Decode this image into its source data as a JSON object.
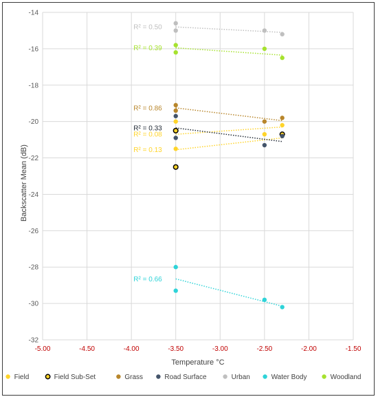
{
  "chart_data": {
    "type": "scatter",
    "title": "",
    "xlabel": "Temperature °C",
    "ylabel": "Backscatter Mean (dB)",
    "xlim": [
      -5.0,
      -1.5
    ],
    "ylim": [
      -32,
      -14
    ],
    "x_ticks": [
      -5.0,
      -4.5,
      -4.0,
      -3.5,
      -3.0,
      -2.5,
      -2.0,
      -1.5
    ],
    "x_tick_labels": [
      "-5.00",
      "-4.50",
      "-4.00",
      "-3.50",
      "-3.00",
      "-2.50",
      "-2.00",
      "-1.50"
    ],
    "y_ticks": [
      -14,
      -16,
      -18,
      -20,
      -22,
      -24,
      -26,
      -28,
      -30,
      -32
    ],
    "y_tick_labels": [
      "-14",
      "-16",
      "-18",
      "-20",
      "-22",
      "-24",
      "-26",
      "-28",
      "-30",
      "-32"
    ],
    "grid": true,
    "legend_position": "bottom",
    "series": [
      {
        "name": "Field",
        "color": "#ffd42a",
        "marker": "filled",
        "points": [
          [
            -3.5,
            -21.5
          ],
          [
            -3.5,
            -20.0
          ],
          [
            -2.5,
            -20.7
          ],
          [
            -2.3,
            -20.2
          ]
        ],
        "trendlines": [
          {
            "x": [
              -3.5,
              -2.3
            ],
            "y": [
              -20.7,
              -20.3
            ],
            "r2_label": "R² = 0.08"
          },
          {
            "x": [
              -3.5,
              -2.3
            ],
            "y": [
              -21.55,
              -20.9
            ],
            "r2_label": "R² = 0.13"
          }
        ]
      },
      {
        "name": "Field Sub-Set",
        "color": "#ffd42a",
        "edge": "#000000",
        "marker": "hollow",
        "points": [
          [
            -3.5,
            -20.5
          ],
          [
            -3.5,
            -22.5
          ],
          [
            -2.3,
            -20.7
          ]
        ],
        "trendlines": []
      },
      {
        "name": "Grass",
        "color": "#b8862b",
        "marker": "filled",
        "points": [
          [
            -3.5,
            -19.1
          ],
          [
            -3.5,
            -19.4
          ],
          [
            -2.5,
            -20.0
          ],
          [
            -2.3,
            -19.8
          ]
        ],
        "trendlines": [
          {
            "x": [
              -3.5,
              -2.3
            ],
            "y": [
              -19.25,
              -19.95
            ],
            "r2_label": "R² = 0.86"
          }
        ]
      },
      {
        "name": "Road Surface",
        "color": "#44546a",
        "marker": "filled",
        "points": [
          [
            -3.5,
            -19.7
          ],
          [
            -3.5,
            -20.9
          ],
          [
            -2.5,
            -21.3
          ],
          [
            -2.3,
            -20.8
          ]
        ],
        "trendlines": [
          {
            "x": [
              -3.5,
              -2.3
            ],
            "y": [
              -20.35,
              -21.1
            ],
            "r2_label": "R² = 0.33"
          }
        ]
      },
      {
        "name": "Urban",
        "color": "#bfbfbf",
        "marker": "filled",
        "points": [
          [
            -3.5,
            -14.6
          ],
          [
            -3.5,
            -15.0
          ],
          [
            -2.5,
            -15.0
          ],
          [
            -2.3,
            -15.2
          ]
        ],
        "trendlines": [
          {
            "x": [
              -3.5,
              -2.3
            ],
            "y": [
              -14.8,
              -15.1
            ],
            "r2_label": "R² = 0.50"
          }
        ]
      },
      {
        "name": "Water Body",
        "color": "#2ed3d8",
        "marker": "filled",
        "points": [
          [
            -3.5,
            -28.0
          ],
          [
            -3.5,
            -29.3
          ],
          [
            -2.5,
            -29.8
          ],
          [
            -2.3,
            -30.2
          ]
        ],
        "trendlines": [
          {
            "x": [
              -3.5,
              -2.3
            ],
            "y": [
              -28.65,
              -30.15
            ],
            "r2_label": "R² = 0.66"
          }
        ]
      },
      {
        "name": "Woodland",
        "color": "#a6e22e",
        "marker": "filled",
        "points": [
          [
            -3.5,
            -15.8
          ],
          [
            -3.5,
            -16.2
          ],
          [
            -2.5,
            -16.0
          ],
          [
            -2.3,
            -16.5
          ]
        ],
        "trendlines": [
          {
            "x": [
              -3.5,
              -2.3
            ],
            "y": [
              -15.95,
              -16.35
            ],
            "r2_label": "R² = 0.39"
          }
        ]
      }
    ]
  }
}
